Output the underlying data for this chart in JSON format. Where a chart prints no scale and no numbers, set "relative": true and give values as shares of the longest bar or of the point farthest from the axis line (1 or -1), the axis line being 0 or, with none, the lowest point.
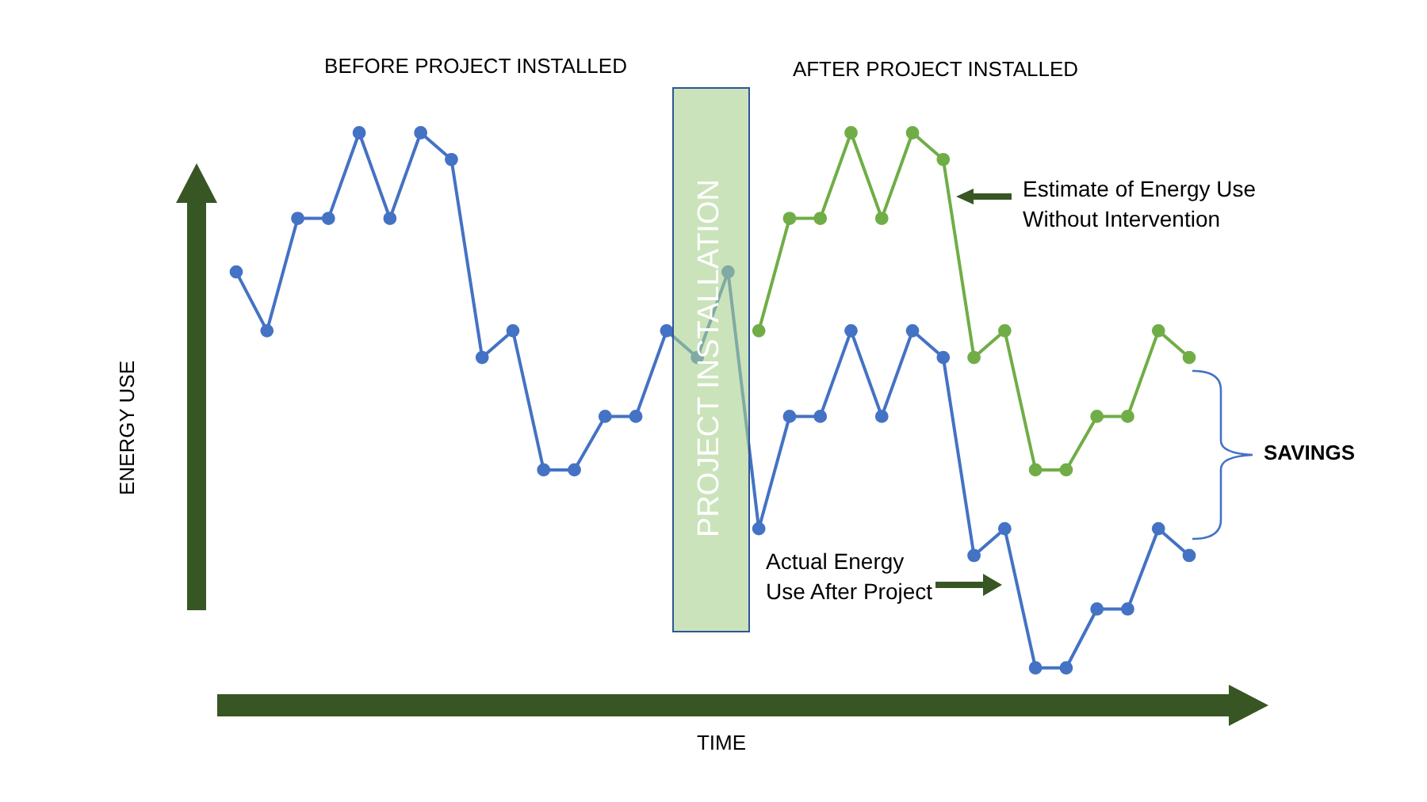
{
  "chart_data": {
    "type": "line",
    "relative": true,
    "xlabel": "TIME",
    "ylabel": "ENERGY USE",
    "categories": [
      null,
      null,
      null,
      null,
      null,
      null,
      null,
      null,
      null,
      null,
      null,
      null,
      null,
      null,
      null,
      null,
      null,
      null,
      null,
      null,
      null,
      null,
      null,
      null,
      null,
      null,
      null,
      null,
      null,
      null,
      null,
      null
    ],
    "series": [
      {
        "color": "#4472c4",
        "values": [
          0.74,
          0.63,
          0.84,
          0.84,
          1,
          0.84,
          1,
          0.95,
          0.58,
          0.63,
          0.37,
          0.37,
          0.47,
          0.47,
          0.63,
          0.58,
          0.74,
          0.26,
          0.47,
          0.47,
          0.63,
          0.47,
          0.63,
          0.58,
          0.21,
          0.26,
          0,
          0,
          0.11,
          0.11,
          0.26,
          0.21
        ]
      },
      {
        "color": "#70ad47",
        "values": [
          null,
          null,
          null,
          null,
          null,
          null,
          null,
          null,
          null,
          null,
          null,
          null,
          null,
          null,
          null,
          null,
          null,
          0.63,
          0.84,
          0.84,
          1,
          0.84,
          1,
          0.95,
          0.58,
          0.63,
          0.37,
          0.37,
          0.47,
          0.47,
          0.63,
          0.58
        ]
      }
    ],
    "annotations": [
      "BEFORE PROJECT INSTALLED",
      "AFTER PROJECT INSTALLED",
      "Estimate of Energy Use Without Intervention",
      "Actual Energy Use After Project",
      "SAVINGS",
      "PROJECT INSTALLATION"
    ],
    "marker": "circle",
    "tick_labels": false
  }
}
